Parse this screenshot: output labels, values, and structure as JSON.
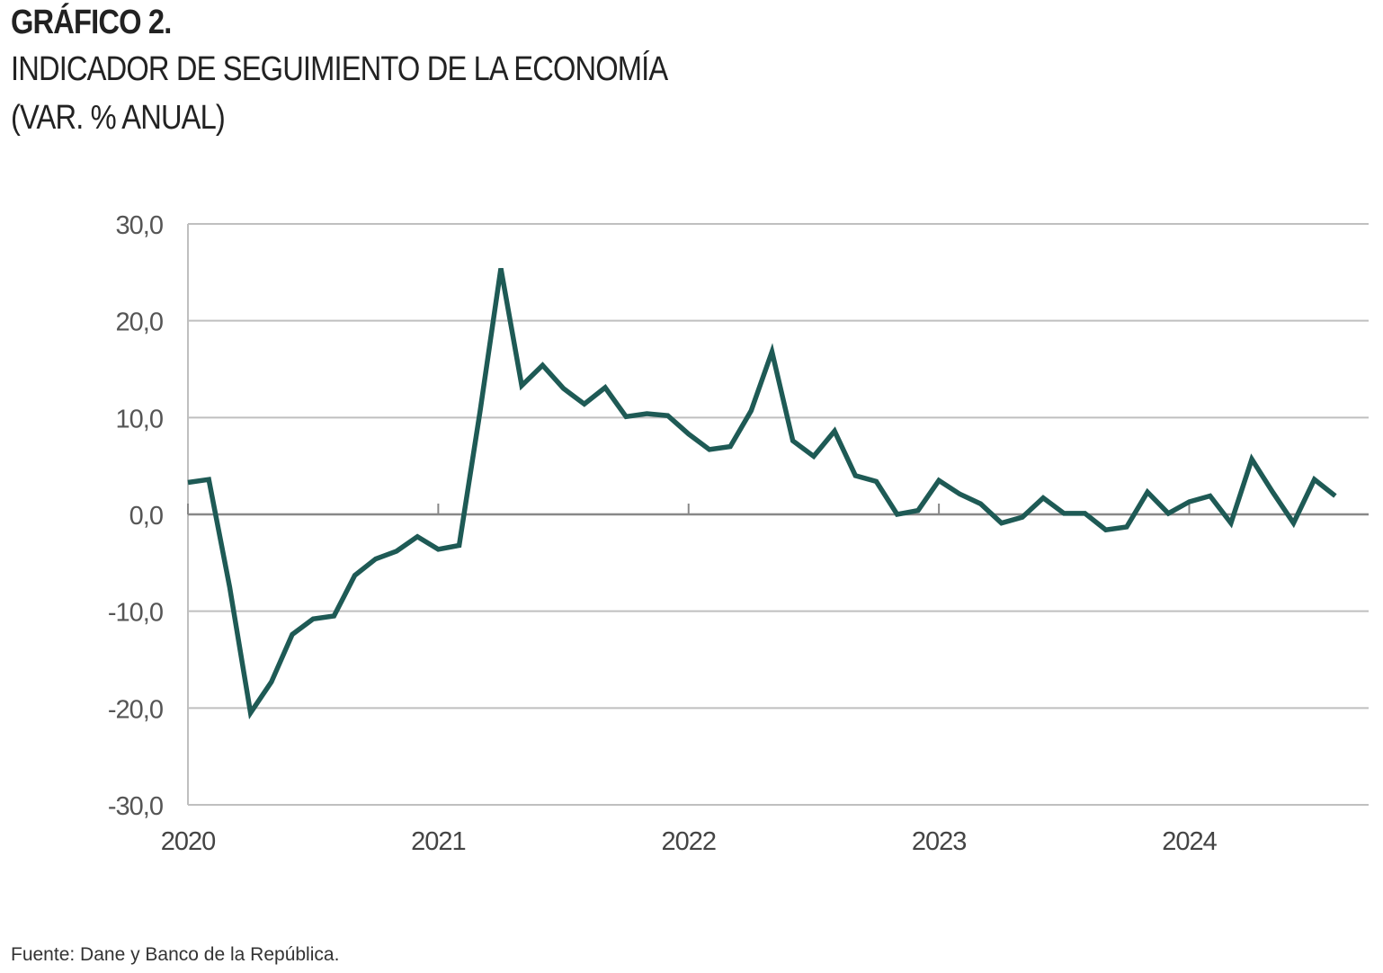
{
  "header": {
    "label": "GRÁFICO 2.",
    "title": "INDICADOR DE SEGUIMIENTO DE LA ECONOMÍA",
    "subtitle": "(VAR. % ANUAL)"
  },
  "source": "Fuente: Dane y Banco de la República.",
  "chart_data": {
    "type": "line",
    "title": "INDICADOR DE SEGUIMIENTO DE LA ECONOMÍA",
    "subtitle": "(VAR. % ANUAL)",
    "xlabel": "",
    "ylabel": "",
    "ylim": [
      -30,
      30
    ],
    "yticks": [
      30,
      20,
      10,
      0,
      -10,
      -20,
      -30
    ],
    "ytick_labels": [
      "30,0",
      "20,0",
      "10,0",
      "0,0",
      "-10,0",
      "-20,0",
      "-30,0"
    ],
    "xlim": [
      "2020-01",
      "2024-08"
    ],
    "xticks": [
      "2020",
      "2021",
      "2022",
      "2023",
      "2024"
    ],
    "grid": "horizontal",
    "legend": "none",
    "colors": {
      "line": "#1e5a55",
      "grid": "#bfbfbf",
      "axis": "#888888"
    },
    "series": [
      {
        "x": [
          "2020-01",
          "2020-02",
          "2020-03",
          "2020-04",
          "2020-05",
          "2020-06",
          "2020-07",
          "2020-08",
          "2020-09",
          "2020-10",
          "2020-11",
          "2020-12",
          "2021-01",
          "2021-02",
          "2021-03",
          "2021-04",
          "2021-05",
          "2021-06",
          "2021-07",
          "2021-08",
          "2021-09",
          "2021-10",
          "2021-11",
          "2021-12",
          "2022-01",
          "2022-02",
          "2022-03",
          "2022-04",
          "2022-05",
          "2022-06",
          "2022-07",
          "2022-08",
          "2022-09",
          "2022-10",
          "2022-11",
          "2022-12",
          "2023-01",
          "2023-02",
          "2023-03",
          "2023-04",
          "2023-05",
          "2023-06",
          "2023-07",
          "2023-08",
          "2023-09",
          "2023-10",
          "2023-11",
          "2023-12",
          "2024-01",
          "2024-02",
          "2024-03",
          "2024-04",
          "2024-05",
          "2024-06",
          "2024-07",
          "2024-08"
        ],
        "values": [
          3.3,
          3.6,
          -7.5,
          -20.5,
          -17.3,
          -12.4,
          -10.8,
          -10.5,
          -6.3,
          -4.6,
          -3.8,
          -2.3,
          -3.6,
          -3.2,
          10.6,
          25.4,
          13.3,
          15.4,
          13.0,
          11.4,
          13.1,
          10.1,
          10.4,
          10.2,
          8.3,
          6.7,
          7.0,
          10.7,
          16.8,
          7.6,
          6.0,
          8.6,
          4.0,
          3.4,
          0.0,
          0.4,
          3.5,
          2.1,
          1.1,
          -0.9,
          -0.3,
          1.7,
          0.1,
          0.1,
          -1.6,
          -1.3,
          2.3,
          0.1,
          1.3,
          1.9,
          -0.9,
          5.7,
          2.3,
          -0.9,
          3.6,
          1.9
        ]
      }
    ]
  }
}
